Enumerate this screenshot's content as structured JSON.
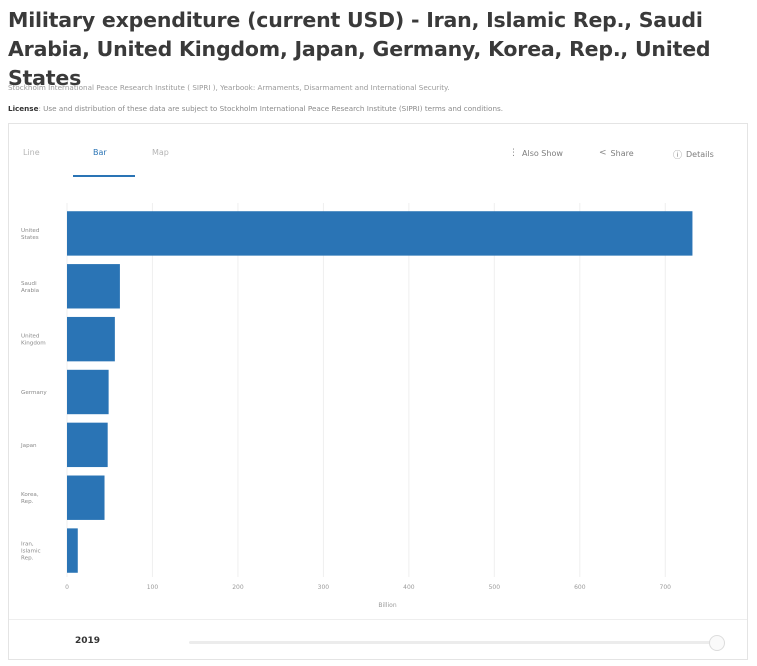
{
  "page": {
    "title": "Military expenditure (current USD) - Iran, Islamic Rep., Saudi Arabia, United Kingdom, Japan, Germany, Korea, Rep., United States",
    "source": "Stockholm International Peace Research Institute ( SIPRI ), Yearbook: Armaments, Disarmament and International Security.",
    "license_label": "License",
    "license_text": ": Use and distribution of these data are subject to Stockholm International Peace Research Institute (SIPRI) terms and conditions."
  },
  "tabs": [
    {
      "label": "Line",
      "active": false
    },
    {
      "label": "Bar",
      "active": true
    },
    {
      "label": "Map",
      "active": false
    }
  ],
  "toolbar": {
    "also_show": "Also Show",
    "share": "Share",
    "details": "Details"
  },
  "icons": {
    "also_show": "dot-icon",
    "share": "share-icon",
    "details": "details-icon"
  },
  "chart_data": {
    "type": "bar",
    "orientation": "horizontal",
    "categories": [
      "United States",
      "Saudi Arabia",
      "United Kingdom",
      "Germany",
      "Japan",
      "Korea, Rep.",
      "Iran, Islamic Rep."
    ],
    "values": [
      731.8,
      61.9,
      56.0,
      48.7,
      47.6,
      43.9,
      12.6
    ],
    "xlim": [
      0,
      750
    ],
    "xticks": [
      "0",
      "100",
      "200",
      "300",
      "400",
      "500",
      "600",
      "700"
    ],
    "xlabel": "Billion",
    "grid": true,
    "bar_color": "#2a74b5"
  },
  "footer": {
    "year": "2019"
  }
}
